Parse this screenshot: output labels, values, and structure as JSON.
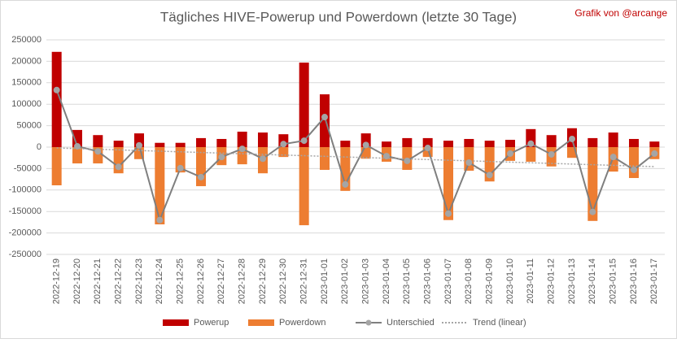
{
  "chart_data": {
    "type": "bar",
    "title": "Tägliches HIVE-Powerup und Powerdown (letzte 30 Tage)",
    "annotation": "Grafik von @arcange",
    "categories": [
      "2022-12-19",
      "2022-12-20",
      "2022-12-21",
      "2022-12-22",
      "2022-12-23",
      "2022-12-24",
      "2022-12-25",
      "2022-12-26",
      "2022-12-27",
      "2022-12-28",
      "2022-12-29",
      "2022-12-30",
      "2022-12-31",
      "2023-01-01",
      "2023-01-02",
      "2023-01-03",
      "2023-01-04",
      "2023-01-05",
      "2023-01-06",
      "2023-01-07",
      "2023-01-08",
      "2023-01-09",
      "2023-01-10",
      "2023-01-11",
      "2023-01-12",
      "2023-01-13",
      "2023-01-14",
      "2023-01-15",
      "2023-01-16",
      "2023-01-17"
    ],
    "series": [
      {
        "name": "Powerup",
        "type": "bar",
        "color": "#c00000",
        "values": [
          222000,
          40000,
          28000,
          15000,
          32000,
          10000,
          10000,
          21000,
          19000,
          36000,
          34000,
          30000,
          197000,
          123000,
          15000,
          32000,
          13000,
          21000,
          21000,
          15000,
          19000,
          15000,
          17000,
          42000,
          28000,
          44000,
          21000,
          34000,
          19000,
          13000
        ]
      },
      {
        "name": "Powerdown",
        "type": "bar",
        "color": "#ed7d31",
        "values": [
          -89000,
          -38000,
          -38000,
          -61000,
          -28000,
          -180000,
          -59000,
          -91000,
          -42000,
          -40000,
          -61000,
          -23000,
          -182000,
          -53000,
          -102000,
          -27000,
          -34000,
          -53000,
          -23000,
          -170000,
          -55000,
          -80000,
          -32000,
          -34000,
          -45000,
          -25000,
          -172000,
          -57000,
          -72000,
          -28000
        ]
      },
      {
        "name": "Unterschied",
        "type": "line",
        "color": "#7f7f7f",
        "markers": true,
        "values": [
          133000,
          2000,
          -10000,
          -46000,
          4000,
          -170000,
          -49000,
          -70000,
          -23000,
          -4000,
          -27000,
          7000,
          15000,
          70000,
          -87000,
          5000,
          -21000,
          -32000,
          -2000,
          -155000,
          -36000,
          -65000,
          -15000,
          8000,
          -17000,
          19000,
          -151000,
          -23000,
          -53000,
          -15000
        ]
      },
      {
        "name": "Trend (linear)",
        "type": "line",
        "color": "#a5a5a5",
        "dashed": true,
        "values": [
          -2000,
          -3500,
          -5000,
          -6500,
          -8000,
          -9500,
          -11000,
          -12500,
          -14000,
          -15500,
          -17000,
          -18500,
          -20000,
          -21500,
          -23000,
          -24500,
          -26000,
          -27500,
          -29000,
          -30500,
          -32000,
          -33500,
          -35000,
          -36500,
          -38000,
          -39500,
          -41000,
          -42500,
          -44000,
          -45500
        ]
      }
    ],
    "ylim": [
      -250000,
      250000
    ],
    "yticks": [
      -250000,
      -200000,
      -150000,
      -100000,
      -50000,
      0,
      50000,
      100000,
      150000,
      200000,
      250000
    ],
    "grid": true
  }
}
